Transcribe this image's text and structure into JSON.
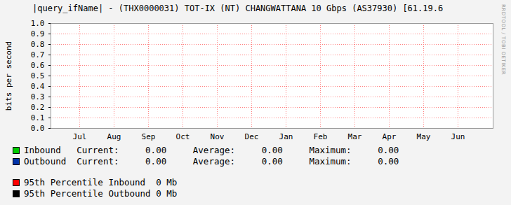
{
  "chart_data": {
    "type": "line",
    "title": "|query_ifName| - (THX0000031) TOT-IX (NT) CHANGWATTANA 10 Gbps (AS37930) [61.19.6",
    "y_label": "bits per second",
    "categories": [
      "Jul",
      "Aug",
      "Sep",
      "Oct",
      "Nov",
      "Dec",
      "Jan",
      "Feb",
      "Mar",
      "Apr",
      "May",
      "Jun"
    ],
    "series": [
      {
        "name": "Inbound",
        "color": "#00cc00",
        "values": [
          null,
          null,
          null,
          null,
          null,
          null,
          null,
          null,
          null,
          null,
          null,
          null
        ],
        "stats": [
          {
            "label": "Current:",
            "value": "0.00"
          },
          {
            "label": "Average:",
            "value": "0.00"
          },
          {
            "label": "Maximum:",
            "value": "0.00"
          }
        ]
      },
      {
        "name": "Outbound",
        "color": "#0033aa",
        "values": [
          null,
          null,
          null,
          null,
          null,
          null,
          null,
          null,
          null,
          null,
          null,
          null
        ],
        "stats": [
          {
            "label": "Current:",
            "value": "0.00"
          },
          {
            "label": "Average:",
            "value": "0.00"
          },
          {
            "label": "Maximum:",
            "value": "0.00"
          }
        ]
      }
    ],
    "percentiles": [
      {
        "name": "95th Percentile Inbound",
        "value": "0 Mb",
        "color": "#ff0000"
      },
      {
        "name": "95th Percentile Outbound",
        "value": "0 Mb",
        "color": "#000000"
      }
    ],
    "watermark": "RRDTOOL / TOBI OETIKER",
    "ylim": [
      0,
      1
    ],
    "yticks": [
      {
        "value": 0,
        "label": "0.0"
      },
      0.1,
      0.2,
      0.3,
      0.4,
      0.5,
      0.6,
      0.7,
      0.8,
      0.9,
      {
        "value": 1,
        "label": "1.0"
      }
    ],
    "grid": true,
    "legend": "bottom"
  }
}
